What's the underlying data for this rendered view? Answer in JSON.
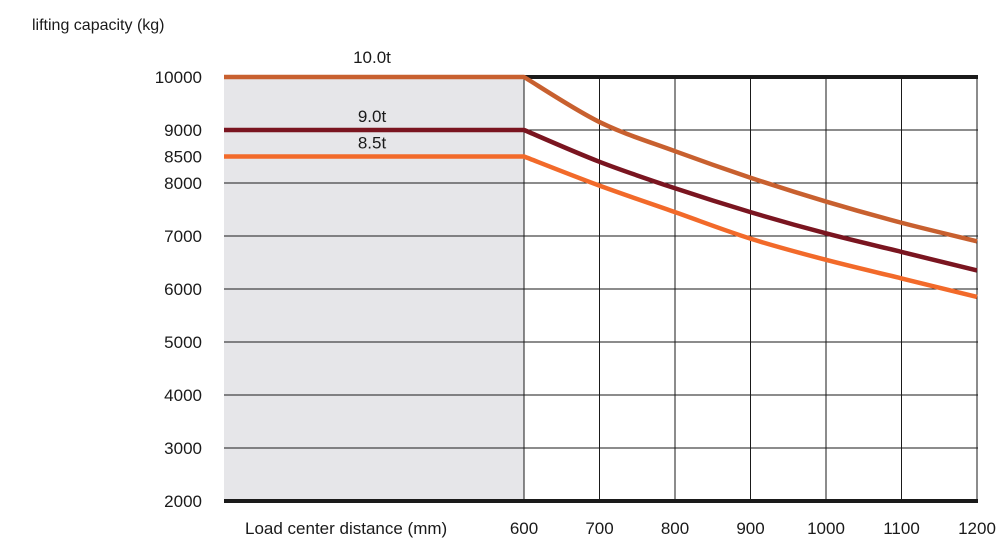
{
  "chart_data": {
    "type": "line",
    "ylabel": "lifting capacity (kg)",
    "xlabel": "Load center distance (mm)",
    "x_ticks": [
      600,
      700,
      800,
      900,
      1000,
      1100,
      1200
    ],
    "y_ticks": [
      2000,
      3000,
      4000,
      5000,
      6000,
      7000,
      8000,
      8500,
      9000,
      10000
    ],
    "xlim": [
      200,
      1200
    ],
    "ylim": [
      2000,
      10000
    ],
    "shaded_region": {
      "x": [
        200,
        600
      ],
      "color": "#e6e6e9"
    },
    "grid": true,
    "x": [
      200,
      600,
      700,
      800,
      900,
      1000,
      1100,
      1200
    ],
    "series": [
      {
        "name": "10.0t",
        "color": "#c8602f",
        "values": [
          10000,
          10000,
          9150,
          8600,
          8100,
          7650,
          7250,
          6900
        ]
      },
      {
        "name": "9.0t",
        "color": "#7a1520",
        "values": [
          9000,
          9000,
          8400,
          7900,
          7450,
          7050,
          6700,
          6350
        ]
      },
      {
        "name": "8.5t",
        "color": "#f26a2a",
        "values": [
          8500,
          8500,
          7950,
          7450,
          6950,
          6550,
          6200,
          5850
        ]
      }
    ]
  }
}
